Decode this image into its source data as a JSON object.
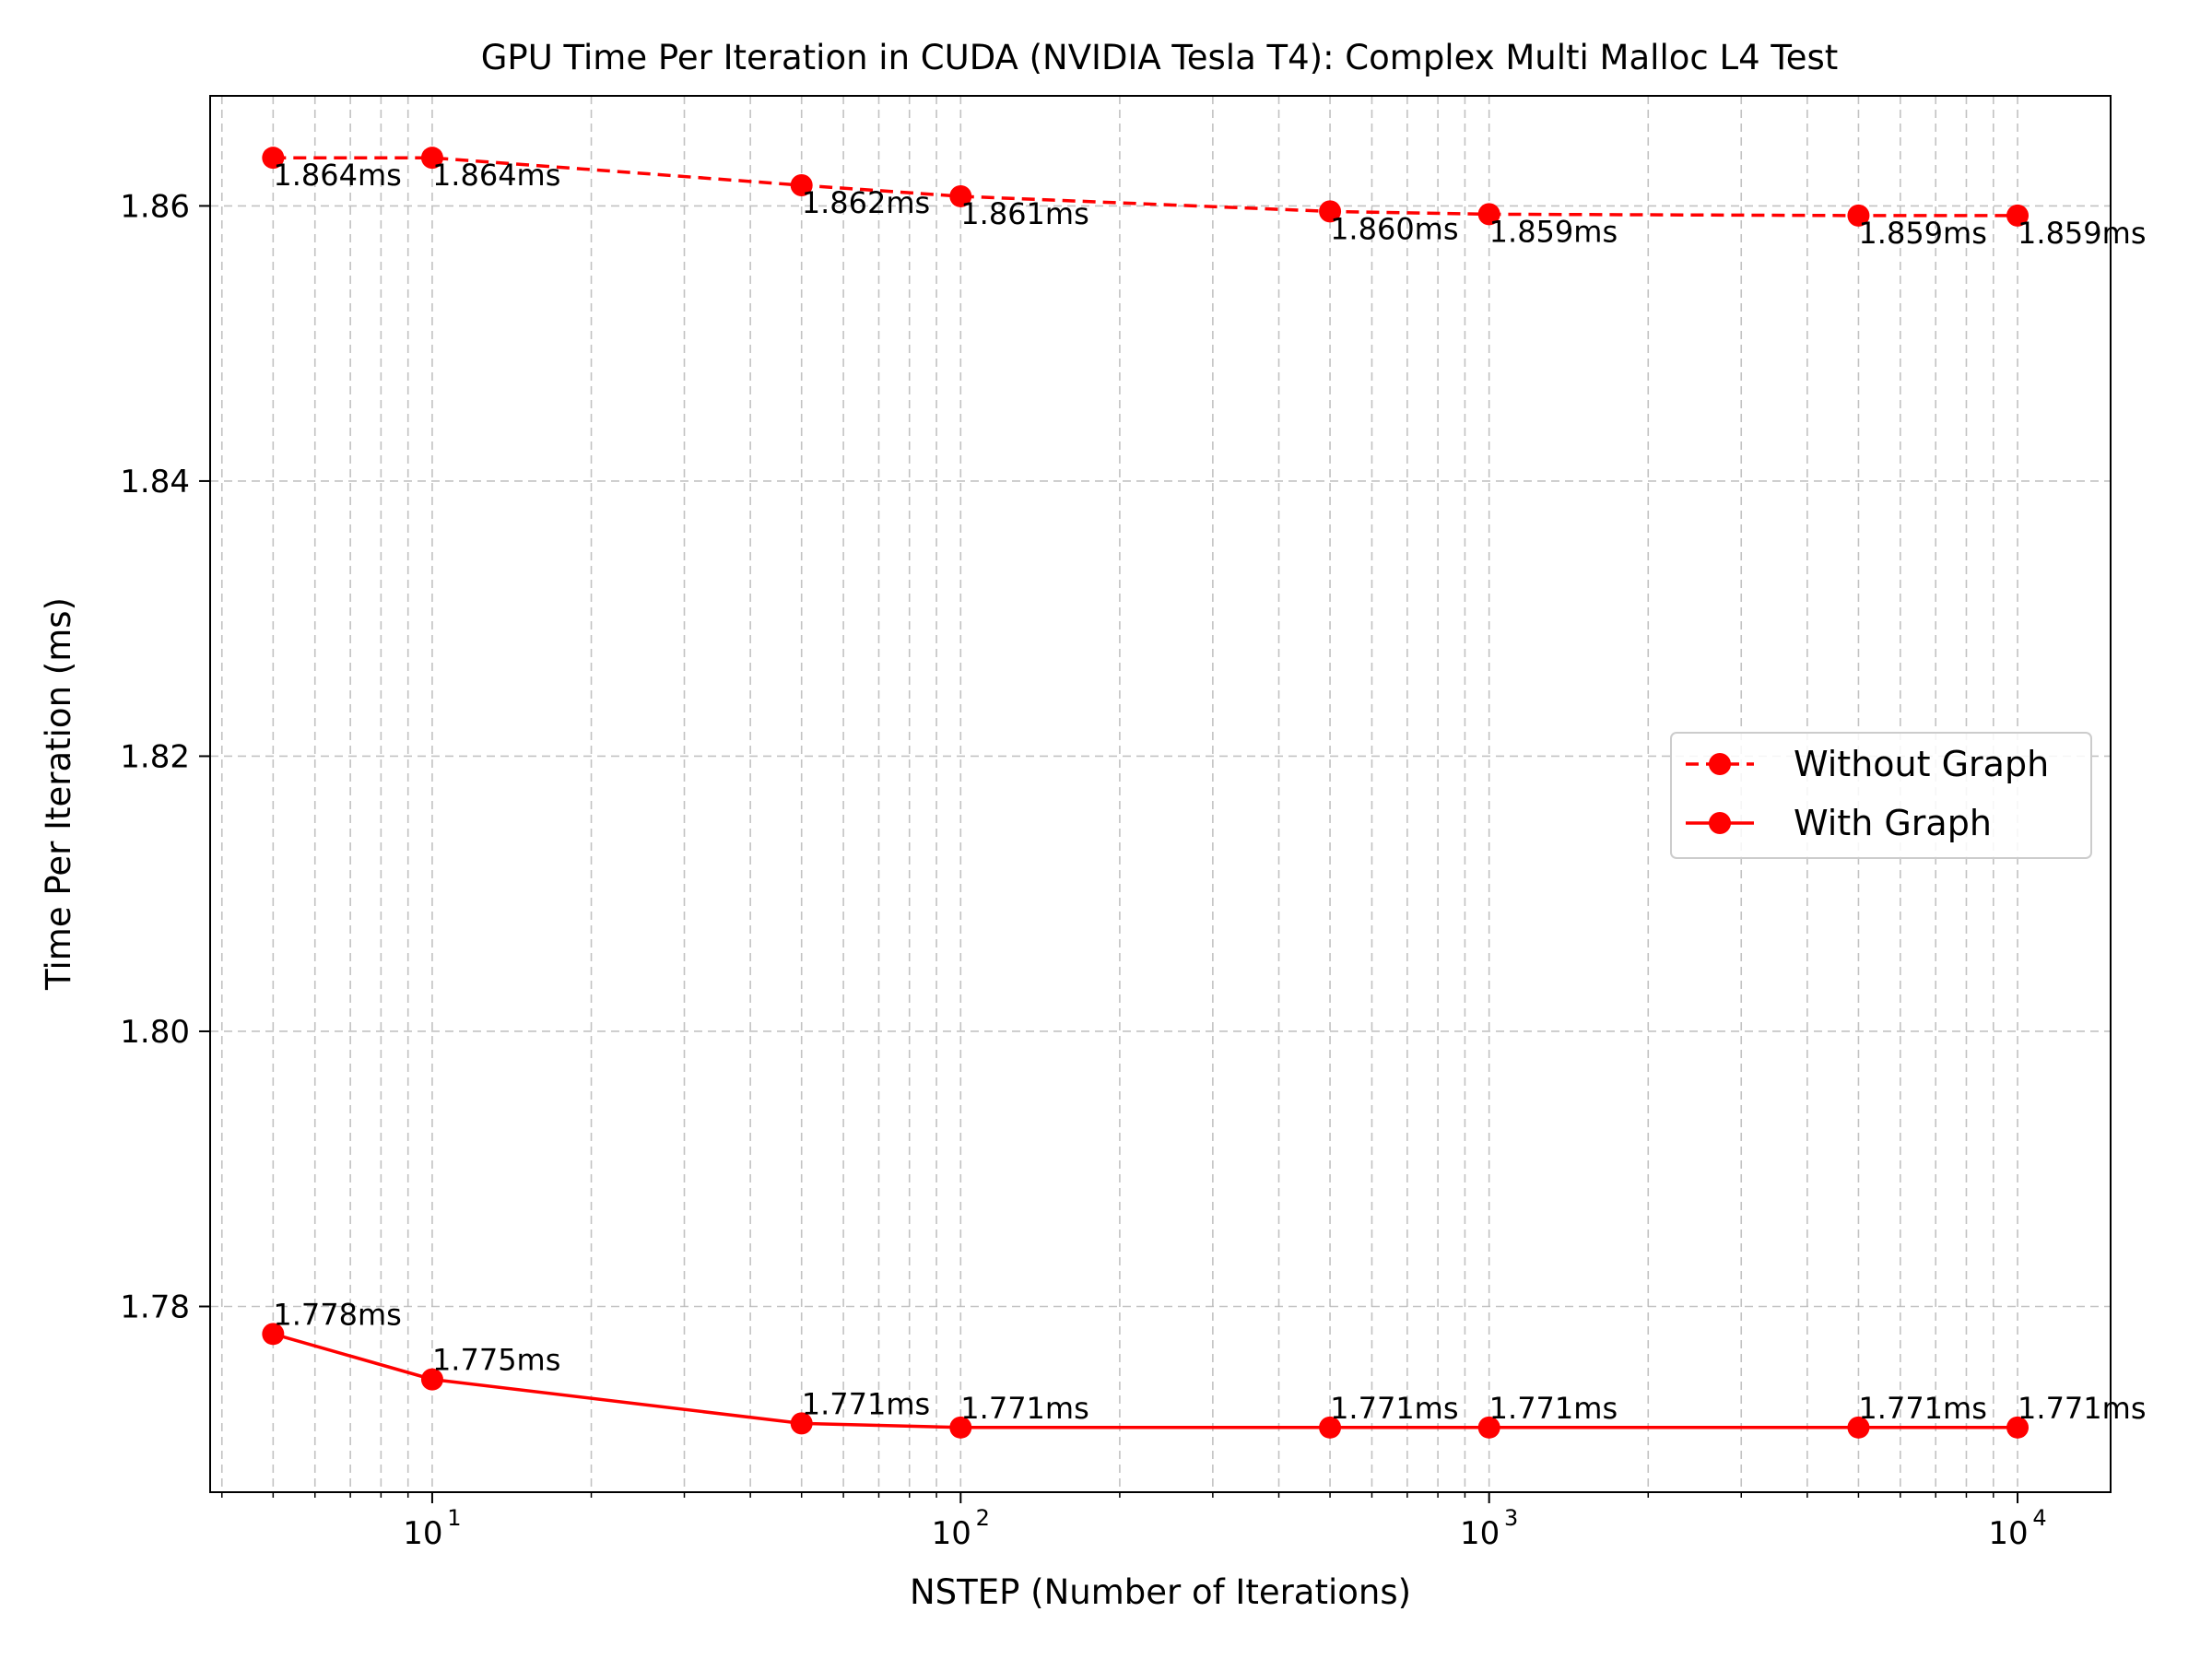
{
  "chart_data": {
    "type": "line",
    "title": "GPU Time Per Iteration in CUDA (NVIDIA Tesla T4): Complex Multi Malloc L4 Test",
    "xlabel": "NSTEP (Number of Iterations)",
    "ylabel": "Time Per Iteration (ms)",
    "xscale": "log",
    "xlim": [
      3.8,
      15000
    ],
    "ylim": [
      1.7665,
      1.868
    ],
    "x_ticks": [
      {
        "value": 10,
        "base": "10",
        "exp": "1"
      },
      {
        "value": 100,
        "base": "10",
        "exp": "2"
      },
      {
        "value": 1000,
        "base": "10",
        "exp": "3"
      },
      {
        "value": 10000,
        "base": "10",
        "exp": "4"
      }
    ],
    "y_ticks": [
      {
        "value": 1.78,
        "label": "1.78"
      },
      {
        "value": 1.8,
        "label": "1.80"
      },
      {
        "value": 1.82,
        "label": "1.82"
      },
      {
        "value": 1.84,
        "label": "1.84"
      },
      {
        "value": 1.86,
        "label": "1.86"
      }
    ],
    "grid": true,
    "legend_position": "center-right",
    "x": [
      5,
      10,
      50,
      100,
      500,
      1000,
      5000,
      10000
    ],
    "series": [
      {
        "name": "Without Graph",
        "style": "dashed",
        "color": "#ff0000",
        "label_position": "below",
        "values": [
          1.8635,
          1.8635,
          1.8615,
          1.8607,
          1.8596,
          1.8594,
          1.8593,
          1.8593
        ],
        "labels": [
          "1.864ms",
          "1.864ms",
          "1.862ms",
          "1.861ms",
          "1.860ms",
          "1.859ms",
          "1.859ms",
          "1.859ms"
        ]
      },
      {
        "name": "With Graph",
        "style": "solid",
        "color": "#ff0000",
        "label_position": "above",
        "values": [
          1.778,
          1.7747,
          1.7715,
          1.7712,
          1.7712,
          1.7712,
          1.7712,
          1.7712
        ],
        "labels": [
          "1.778ms",
          "1.775ms",
          "1.771ms",
          "1.771ms",
          "1.771ms",
          "1.771ms",
          "1.771ms",
          "1.771ms"
        ]
      }
    ]
  }
}
